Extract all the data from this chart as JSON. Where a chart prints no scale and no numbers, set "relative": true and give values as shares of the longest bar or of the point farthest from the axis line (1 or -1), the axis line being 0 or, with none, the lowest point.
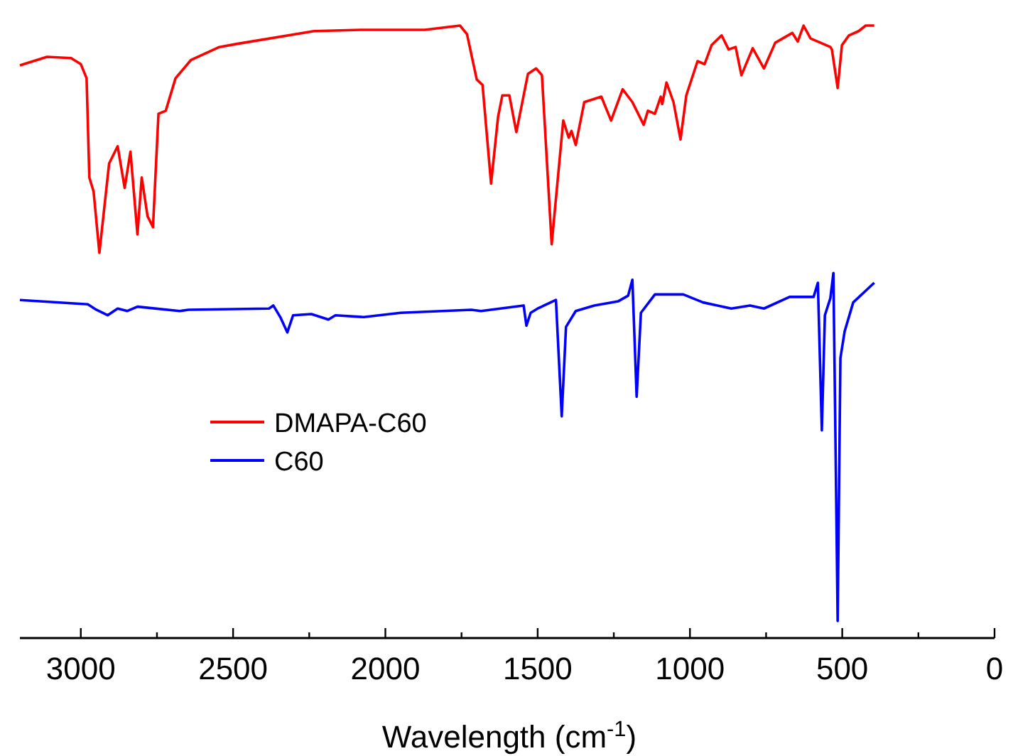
{
  "chart_data": {
    "type": "line",
    "relative": true,
    "xlabel": "Wavelength (cm$^{-1}$)",
    "xlim": [
      3200,
      0
    ],
    "xticks": [
      3000,
      {
        "value": 2750,
        "label": null
      },
      2500,
      {
        "value": 2250,
        "label": null
      },
      2000,
      {
        "value": 1750,
        "label": null
      },
      1500,
      {
        "value": 1250,
        "label": null
      },
      1000,
      {
        "value": 750,
        "label": null
      },
      500,
      {
        "value": 250,
        "label": null
      },
      0
    ],
    "legend": "left",
    "grid": false,
    "marker": "none",
    "line_style": "solid",
    "series": [
      {
        "name": "DMAPA-C60",
        "color": "#ff0000",
        "x": [
          3200,
          3111,
          3032,
          3000,
          2981,
          2972,
          2958,
          2939,
          2907,
          2879,
          2856,
          2837,
          2814,
          2800,
          2781,
          2763,
          2745,
          2721,
          2689,
          2638,
          2545,
          2489,
          2234,
          2081,
          1871,
          1755,
          1732,
          1700,
          1681,
          1653,
          1630,
          1616,
          1593,
          1570,
          1532,
          1505,
          1486,
          1454,
          1416,
          1398,
          1389,
          1375,
          1347,
          1291,
          1259,
          1221,
          1189,
          1152,
          1138,
          1115,
          1096,
          1091,
          1077,
          1054,
          1031,
          1012,
          975,
          952,
          929,
          896,
          873,
          850,
          831,
          794,
          757,
          720,
          664,
          646,
          627,
          604,
          539,
          534,
          515,
          501,
          478,
          446,
          423,
          395
        ],
        "values": [
          0.935,
          0.949,
          0.947,
          0.937,
          0.914,
          0.752,
          0.729,
          0.629,
          0.775,
          0.803,
          0.735,
          0.794,
          0.659,
          0.752,
          0.689,
          0.671,
          0.856,
          0.861,
          0.914,
          0.944,
          0.965,
          0.97,
          0.991,
          0.993,
          0.993,
          1,
          0.986,
          0.912,
          0.903,
          0.742,
          0.851,
          0.886,
          0.886,
          0.826,
          0.921,
          0.93,
          0.919,
          0.643,
          0.845,
          0.817,
          0.828,
          0.805,
          0.875,
          0.884,
          0.845,
          0.896,
          0.875,
          0.838,
          0.861,
          0.856,
          0.884,
          0.872,
          0.907,
          0.875,
          0.814,
          0.886,
          0.942,
          0.937,
          0.968,
          0.984,
          0.961,
          0.965,
          0.919,
          0.963,
          0.93,
          0.972,
          0.988,
          0.974,
          1,
          0.979,
          0.965,
          0.961,
          0.898,
          0.968,
          0.984,
          0.991,
          1,
          1
        ]
      },
      {
        "name": "C60",
        "color": "#0000ff",
        "x": [
          3200,
          2977,
          2949,
          2912,
          2879,
          2847,
          2814,
          2675,
          2647,
          2382,
          2368,
          2345,
          2322,
          2303,
          2243,
          2187,
          2164,
          2071,
          1950,
          1718,
          1686,
          1546,
          1537,
          1523,
          1500,
          1440,
          1421,
          1407,
          1375,
          1314,
          1235,
          1203,
          1189,
          1175,
          1161,
          1115,
          1022,
          957,
          864,
          803,
          757,
          673,
          594,
          580,
          567,
          557,
          539,
          529,
          515,
          506,
          492,
          464,
          395
        ],
        "values": [
          0.552,
          0.545,
          0.536,
          0.527,
          0.538,
          0.534,
          0.541,
          0.534,
          0.536,
          0.538,
          0.543,
          0.524,
          0.499,
          0.527,
          0.529,
          0.52,
          0.527,
          0.524,
          0.531,
          0.536,
          0.534,
          0.543,
          0.51,
          0.531,
          0.538,
          0.552,
          0.362,
          0.508,
          0.534,
          0.543,
          0.55,
          0.559,
          0.585,
          0.394,
          0.531,
          0.561,
          0.561,
          0.548,
          0.538,
          0.543,
          0.538,
          0.557,
          0.557,
          0.58,
          0.339,
          0.527,
          0.555,
          0.596,
          0.028,
          0.457,
          0.501,
          0.548,
          0.58
        ]
      }
    ]
  }
}
